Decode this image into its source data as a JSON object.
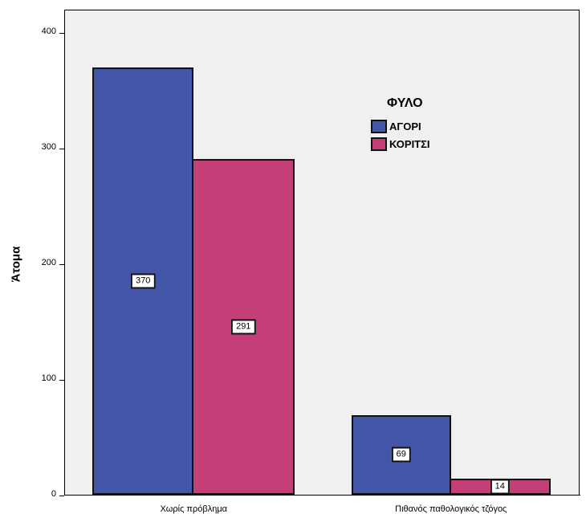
{
  "chart_data": {
    "type": "bar",
    "categories": [
      "Χωρίς πρόβλημα",
      "Πιθανός παθολογικός τζόγος"
    ],
    "series": [
      {
        "name": "ΑΓΟΡΙ",
        "color": "#4356a8",
        "values": [
          370,
          69
        ]
      },
      {
        "name": "ΚΟΡΙΤΣΙ",
        "color": "#c43f78",
        "values": [
          291,
          14
        ]
      }
    ],
    "title": "",
    "xlabel": "",
    "ylabel": "Άτομα",
    "ylim": [
      0,
      420
    ],
    "yticks": [
      0,
      100,
      200,
      300,
      400
    ],
    "legend": {
      "title": "ΦΥΛΟ",
      "position": "top-right"
    },
    "grid": false
  }
}
